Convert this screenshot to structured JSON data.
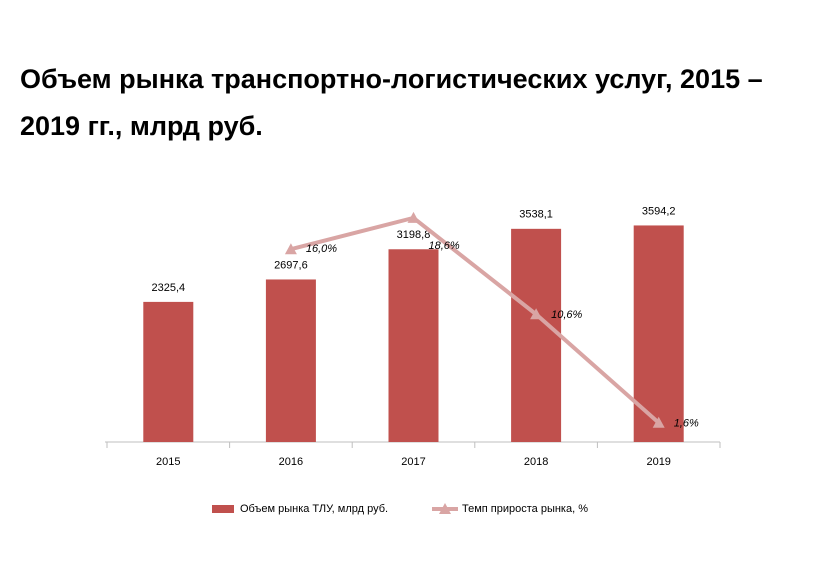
{
  "chart_data": {
    "type": "bar",
    "title": "Объем рынка транспортно-логистических услуг, 2015 – 2019 гг., млрд руб.",
    "categories": [
      "2015",
      "2016",
      "2017",
      "2018",
      "2019"
    ],
    "ylim": [
      0,
      4000
    ],
    "y2lim": [
      0,
      20
    ],
    "series": [
      {
        "name": "Объем рынка ТЛУ, млрд руб.",
        "type": "bar",
        "color": "#c0504d",
        "values": [
          2325.4,
          2697.6,
          3198.8,
          3538.1,
          3594.2
        ],
        "value_labels": [
          "2325,4",
          "2697,6",
          "3198,8",
          "3538,1",
          "3594,2"
        ]
      },
      {
        "name": "Темп прироста рынка, %",
        "type": "line",
        "axis": "y2",
        "color": "#d9a5a4",
        "values": [
          null,
          16.0,
          18.6,
          10.6,
          1.6
        ],
        "value_labels": [
          null,
          "16,0%",
          "18,6%",
          "10,6%",
          "1,6%"
        ]
      }
    ],
    "legend": "bottom"
  }
}
